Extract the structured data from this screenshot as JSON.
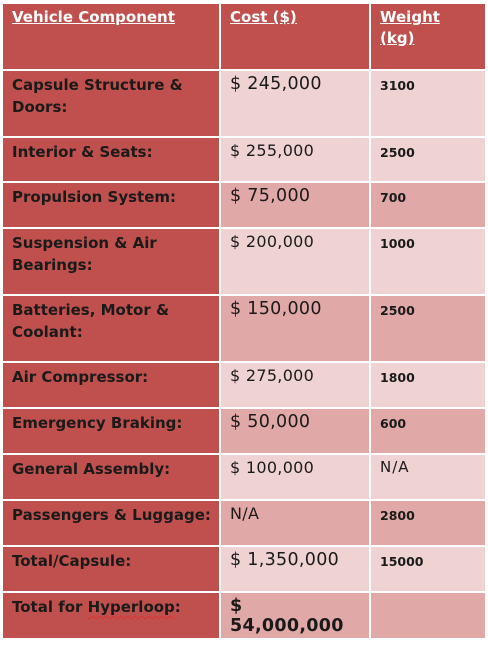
{
  "table": {
    "headers": {
      "component": "Vehicle Component",
      "cost": "Cost ($)",
      "weight_line1": "Weight",
      "weight_line2": "(kg)"
    },
    "rows": [
      {
        "c1": "Capsule Structure &",
        "c2": "Doors:",
        "cost": "$ 245,000",
        "weight": "3100"
      },
      {
        "c1": "Interior & Seats:",
        "cost": "$ 255,000",
        "weight": "2500"
      },
      {
        "c1": "Propulsion System:",
        "cost": "$ 75,000",
        "weight": "700"
      },
      {
        "c1": "Suspension & Air",
        "c2": "Bearings:",
        "cost": "$ 200,000",
        "weight": "1000"
      },
      {
        "c1": "Batteries, Motor &",
        "c2": "Coolant:",
        "cost": "$ 150,000",
        "weight": "2500"
      },
      {
        "c1": "Air Compressor:",
        "cost": "$ 275,000",
        "weight": "1800"
      },
      {
        "c1": "Emergency Braking:",
        "cost": "$ 50,000",
        "weight": "600"
      },
      {
        "c1": "General Assembly:",
        "cost": "$ 100,000",
        "weight": "N/A"
      },
      {
        "c1": "Passengers & Luggage:",
        "cost": "N/A",
        "weight": "2800"
      },
      {
        "c1": "Total/Capsule:",
        "cost": "$ 1,350,000",
        "weight": "15000"
      },
      {
        "c1a": "Total for ",
        "c1b": "Hyperloop",
        "c1c": ":",
        "cost": "$ 54,000,000",
        "weight": ""
      }
    ]
  }
}
